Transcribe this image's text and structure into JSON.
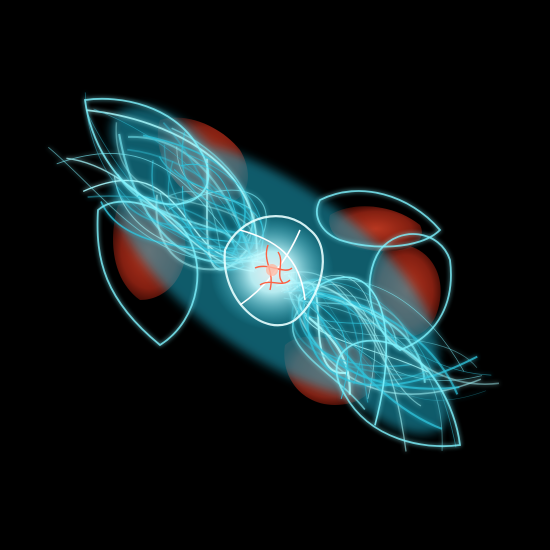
{
  "image": {
    "subject": "fractal-flame",
    "background_color": "#000000",
    "palette": {
      "glow_cyan": "#7ff4ff",
      "mid_cyan": "#2fc4dc",
      "deep_teal": "#0b5a70",
      "ember_red": "#b3311f",
      "dark_red": "#5a1208",
      "hot_core": "#ffb7a0"
    }
  }
}
